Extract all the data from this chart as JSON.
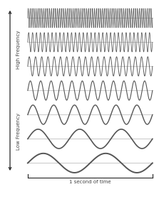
{
  "background_color": "#ffffff",
  "num_waves": 7,
  "frequencies": [
    64,
    32,
    20,
    12,
    6,
    3,
    2
  ],
  "wave_color": "#555555",
  "line_color": "#b0b0b0",
  "line_widths": [
    0.5,
    0.55,
    0.65,
    0.8,
    1.0,
    1.2,
    1.4
  ],
  "arrow_color": "#222222",
  "text_high": "High Frequency",
  "text_low": "Low Frequency",
  "text_time": "1 second of time",
  "text_color": "#444444",
  "font_size": 5.0,
  "time_label_fontsize": 5.0,
  "fig_width": 2.16,
  "fig_height": 2.8,
  "dpi": 100
}
